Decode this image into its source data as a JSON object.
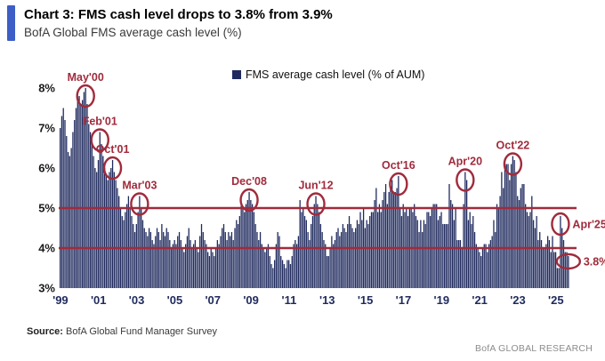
{
  "header": {
    "title": "Chart 3: FMS cash level drops to 3.8% from 3.9%",
    "subtitle": "BofA Global FMS average cash level (%)"
  },
  "legend": {
    "label": "FMS average cash level (% of AUM)"
  },
  "footer": {
    "source_prefix": "Source:",
    "source_text": " BofA Global Fund Manager Survey",
    "watermark": "BofA GLOBAL RESEARCH"
  },
  "colors": {
    "bar": "#1F2A5E",
    "reference_red": "#A02B3C",
    "accent_blue": "#3D5EC6",
    "axis_text": "#1F2A5E",
    "ytick_text": "#1a1a1a"
  },
  "chart_data": {
    "type": "bar",
    "title": "BofA Global FMS average cash level (%)",
    "series_name": "FMS average cash level (% of AUM)",
    "start_month": "1999-01",
    "frequency": "monthly",
    "ylim": [
      3,
      8.5
    ],
    "grid": false,
    "legend_position": "top-center",
    "reference_lines": [
      4.0,
      5.0
    ],
    "y_ticks": [
      {
        "label": "8%",
        "value": 8
      },
      {
        "label": "7%",
        "value": 7
      },
      {
        "label": "6%",
        "value": 6
      },
      {
        "label": "5%",
        "value": 5
      },
      {
        "label": "4%",
        "value": 4
      },
      {
        "label": "3%",
        "value": 3
      }
    ],
    "x_ticks": [
      {
        "label": "'99",
        "month_index": 0
      },
      {
        "label": "'01",
        "month_index": 24
      },
      {
        "label": "'03",
        "month_index": 48
      },
      {
        "label": "'05",
        "month_index": 72
      },
      {
        "label": "'07",
        "month_index": 96
      },
      {
        "label": "'09",
        "month_index": 120
      },
      {
        "label": "'11",
        "month_index": 144
      },
      {
        "label": "'13",
        "month_index": 168
      },
      {
        "label": "'15",
        "month_index": 192
      },
      {
        "label": "'17",
        "month_index": 216
      },
      {
        "label": "'19",
        "month_index": 240
      },
      {
        "label": "'21",
        "month_index": 264
      },
      {
        "label": "'23",
        "month_index": 288
      },
      {
        "label": "'25",
        "month_index": 312
      }
    ],
    "values": [
      7.0,
      7.3,
      7.5,
      7.2,
      6.8,
      6.4,
      6.3,
      6.5,
      6.9,
      7.2,
      7.5,
      7.7,
      7.8,
      7.6,
      7.7,
      7.9,
      8.0,
      7.6,
      7.1,
      6.9,
      6.6,
      6.3,
      6.0,
      5.9,
      6.2,
      6.9,
      6.6,
      6.3,
      6.0,
      5.8,
      5.7,
      5.9,
      6.0,
      6.2,
      5.9,
      5.7,
      5.5,
      5.3,
      5.0,
      4.8,
      4.7,
      4.9,
      5.1,
      5.3,
      5.0,
      4.8,
      4.6,
      4.4,
      4.6,
      4.9,
      5.3,
      5.0,
      4.7,
      4.5,
      4.4,
      4.3,
      4.5,
      4.4,
      4.2,
      4.1,
      4.3,
      4.5,
      4.4,
      4.2,
      4.6,
      4.4,
      4.3,
      4.5,
      4.4,
      4.2,
      4.0,
      4.1,
      4.2,
      4.1,
      4.3,
      4.4,
      4.2,
      4.0,
      3.9,
      4.1,
      4.3,
      4.5,
      4.2,
      4.0,
      4.1,
      4.2,
      4.0,
      3.9,
      4.3,
      4.6,
      4.4,
      4.2,
      4.1,
      3.9,
      3.8,
      4.0,
      3.9,
      3.8,
      4.0,
      4.2,
      4.1,
      4.3,
      4.5,
      4.6,
      4.4,
      4.2,
      4.4,
      4.3,
      4.4,
      4.2,
      4.5,
      4.7,
      4.6,
      4.8,
      5.1,
      5.0,
      4.9,
      5.1,
      5.2,
      5.4,
      5.2,
      5.1,
      4.9,
      4.6,
      4.4,
      4.2,
      4.4,
      4.1,
      4.0,
      3.9,
      4.0,
      4.1,
      3.8,
      3.6,
      3.5,
      3.7,
      4.1,
      4.4,
      4.3,
      3.8,
      3.7,
      3.6,
      3.5,
      3.7,
      3.7,
      3.6,
      3.8,
      4.1,
      4.2,
      4.1,
      4.3,
      5.2,
      4.9,
      5.0,
      4.8,
      4.7,
      4.4,
      4.2,
      4.6,
      4.8,
      5.1,
      5.3,
      5.1,
      4.9,
      4.6,
      4.4,
      4.2,
      4.1,
      3.8,
      3.8,
      4.0,
      4.3,
      4.1,
      4.2,
      4.4,
      4.5,
      4.3,
      4.4,
      4.6,
      4.5,
      4.4,
      4.6,
      4.8,
      4.6,
      4.5,
      4.4,
      4.5,
      4.7,
      4.6,
      4.9,
      4.7,
      5.0,
      4.5,
      4.7,
      4.6,
      4.8,
      4.9,
      4.9,
      5.2,
      5.5,
      4.9,
      5.1,
      4.9,
      5.2,
      5.4,
      5.6,
      5.1,
      5.4,
      5.5,
      5.7,
      5.4,
      5.4,
      5.5,
      5.8,
      5.0,
      4.8,
      5.1,
      4.9,
      5.0,
      4.8,
      5.0,
      5.0,
      4.9,
      5.1,
      4.8,
      4.7,
      4.4,
      4.7,
      4.4,
      4.7,
      4.6,
      4.9,
      4.9,
      4.8,
      5.0,
      5.1,
      5.1,
      5.1,
      4.7,
      4.8,
      4.9,
      4.6,
      4.6,
      4.6,
      4.6,
      5.6,
      5.2,
      5.1,
      4.7,
      5.0,
      4.2,
      4.2,
      4.2,
      4.0,
      5.1,
      5.9,
      5.7,
      4.7,
      4.9,
      4.6,
      4.8,
      4.4,
      4.1,
      4.0,
      3.9,
      3.8,
      4.0,
      4.1,
      4.1,
      3.9,
      4.1,
      4.2,
      4.3,
      4.7,
      4.4,
      5.1,
      5.0,
      5.3,
      5.9,
      5.5,
      6.1,
      6.1,
      6.1,
      5.7,
      6.1,
      6.3,
      6.2,
      5.9,
      5.3,
      5.2,
      5.5,
      5.6,
      5.6,
      5.1,
      4.9,
      4.8,
      4.9,
      5.3,
      4.7,
      4.5,
      4.8,
      4.2,
      4.4,
      4.2,
      4.0,
      4.0,
      4.1,
      4.3,
      4.2,
      3.9,
      4.3,
      3.9,
      3.9,
      3.5,
      3.5,
      4.8,
      4.5,
      4.2,
      3.9,
      3.9,
      3.8
    ],
    "annotations": [
      {
        "label": "May'00",
        "month_index": 16,
        "value": 8.0,
        "placement": "top"
      },
      {
        "label": "Feb'01",
        "month_index": 25,
        "value": 6.9,
        "placement": "top"
      },
      {
        "label": "Oct'01",
        "month_index": 33,
        "value": 6.2,
        "placement": "top"
      },
      {
        "label": "Mar'03",
        "month_index": 50,
        "value": 5.3,
        "placement": "top"
      },
      {
        "label": "Dec'08",
        "month_index": 119,
        "value": 5.4,
        "placement": "top"
      },
      {
        "label": "Jun'12",
        "month_index": 161,
        "value": 5.3,
        "placement": "top"
      },
      {
        "label": "Oct'16",
        "month_index": 213,
        "value": 5.8,
        "placement": "top"
      },
      {
        "label": "Apr'20",
        "month_index": 255,
        "value": 5.9,
        "placement": "top"
      },
      {
        "label": "Oct'22",
        "month_index": 285,
        "value": 6.3,
        "placement": "top"
      },
      {
        "label": "Apr'25",
        "month_index": 315,
        "value": 4.8,
        "placement": "right"
      },
      {
        "label": "3.8%",
        "month_index": 320,
        "value": 3.8,
        "placement": "right",
        "shape": "flat-ellipse"
      }
    ]
  }
}
